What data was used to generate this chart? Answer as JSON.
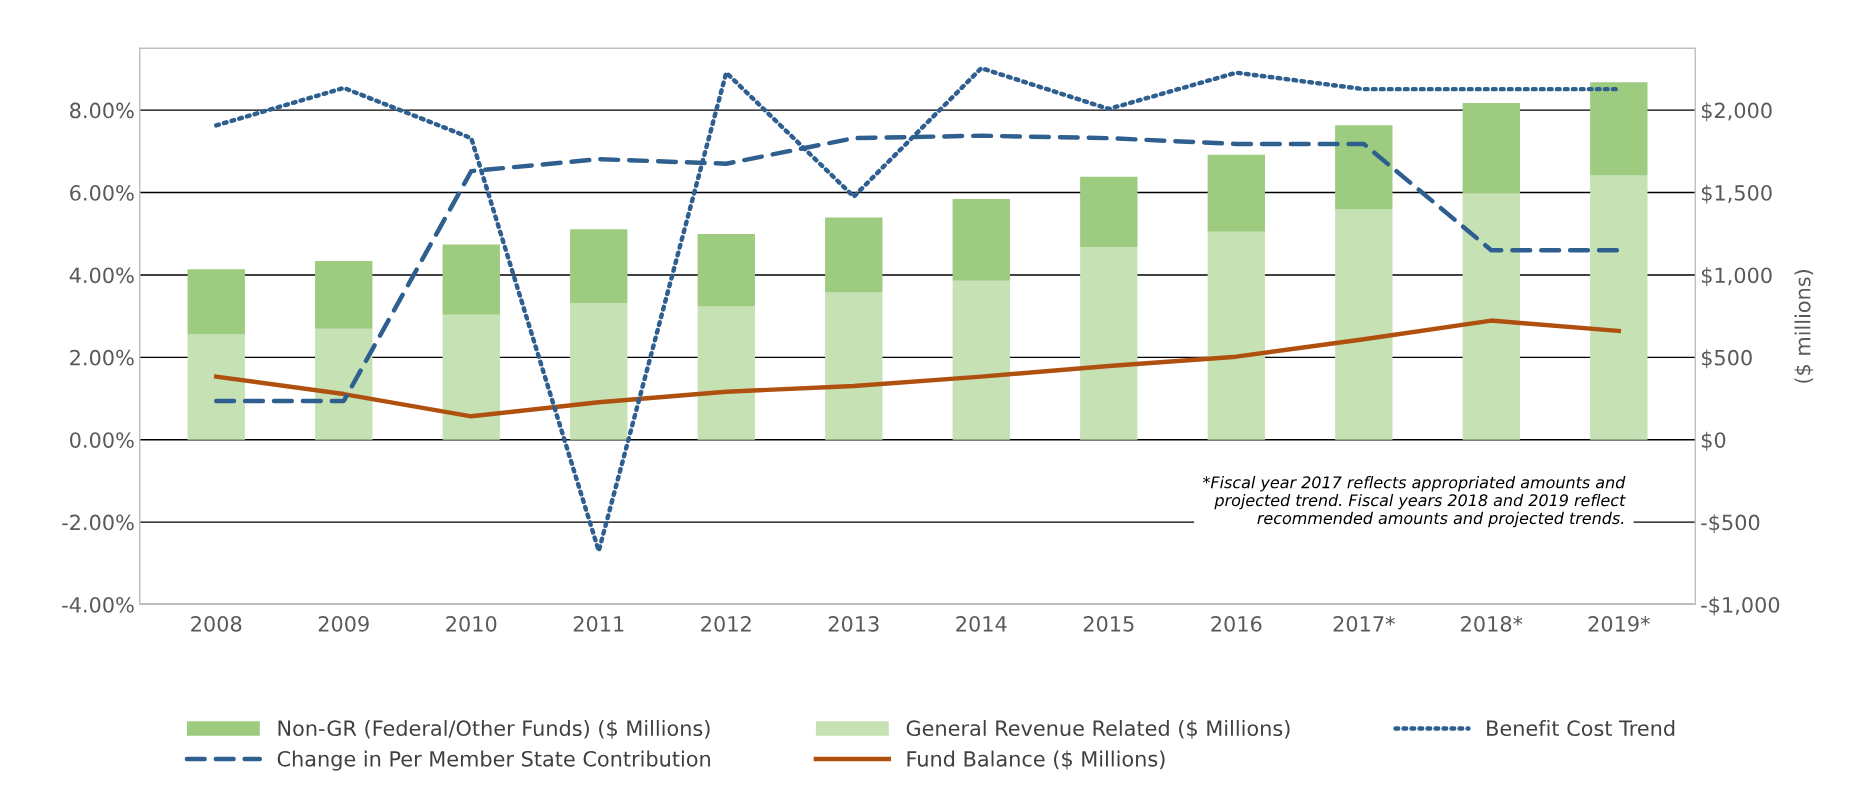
{
  "chart_data": {
    "type": "bar",
    "stacked": true,
    "categories": [
      "2008",
      "2009",
      "2010",
      "2011",
      "2012",
      "2013",
      "2014",
      "2015",
      "2016",
      "2017*",
      "2018*",
      "2019*"
    ],
    "series": [
      {
        "name": "General Revenue Related ($ Millions)",
        "color": "#c6e2b5",
        "axis": "y2",
        "values": [
          638,
          674,
          759,
          830,
          809,
          894,
          965,
          1170,
          1262,
          1397,
          1496,
          1603
        ]
      },
      {
        "name": "Non-GR (Federal/Other Funds) ($ Millions)",
        "color": "#9dcb80",
        "axis": "y2",
        "values": [
          397,
          411,
          425,
          447,
          439,
          454,
          496,
          426,
          468,
          511,
          547,
          567
        ]
      },
      {
        "name": "Benefit Cost Trend",
        "type": "line",
        "line_style": "dotted",
        "color": "#2e5f8f",
        "values": [
          7.63,
          8.54,
          7.32,
          -2.7,
          8.91,
          5.9,
          9.02,
          8.03,
          8.91,
          8.51,
          8.51,
          8.51
        ]
      },
      {
        "name": "Change in Per Member State Contribution",
        "type": "line",
        "line_style": "dashed",
        "color": "#2e5f8f",
        "values": [
          0.94,
          0.94,
          6.52,
          6.81,
          6.7,
          7.32,
          7.38,
          7.32,
          7.18,
          7.18,
          4.6,
          4.6
        ]
      },
      {
        "name": "Fund Balance ($ Millions)",
        "type": "line",
        "line_style": "solid",
        "color": "#b0500f",
        "axis": "y2",
        "values": [
          383,
          277,
          142,
          227,
          291,
          326,
          383,
          447,
          504,
          610,
          723,
          660
        ]
      }
    ],
    "ylim": [
      -4,
      9.5
    ],
    "yticks": [
      {
        "value": -4,
        "label": "-4.00%"
      },
      {
        "value": -2,
        "label": "-2.00%"
      },
      {
        "value": 0,
        "label": "0.00%"
      },
      {
        "value": 2,
        "label": "2.00%"
      },
      {
        "value": 4,
        "label": "4.00%"
      },
      {
        "value": 6,
        "label": "6.00%"
      },
      {
        "value": 8,
        "label": "8.00%"
      }
    ],
    "y2lim": [
      -1000,
      2375
    ],
    "y2ticks": [
      {
        "value": -1000,
        "label": "-$1,000"
      },
      {
        "value": -500,
        "label": "-$500"
      },
      {
        "value": 0,
        "label": "$0"
      },
      {
        "value": 500,
        "label": "$500"
      },
      {
        "value": 1000,
        "label": "$1,000"
      },
      {
        "value": 1500,
        "label": "$1,500"
      },
      {
        "value": 2000,
        "label": "$2,000"
      }
    ],
    "y2label": "($ millions)",
    "grid": "y",
    "legend": "bottom",
    "annotations": [
      "*Fiscal year 2017 reflects appropriated amounts and\nprojected trend. Fiscal years 2018 and 2019 reflect\nrecommended amounts and projected trends."
    ]
  }
}
